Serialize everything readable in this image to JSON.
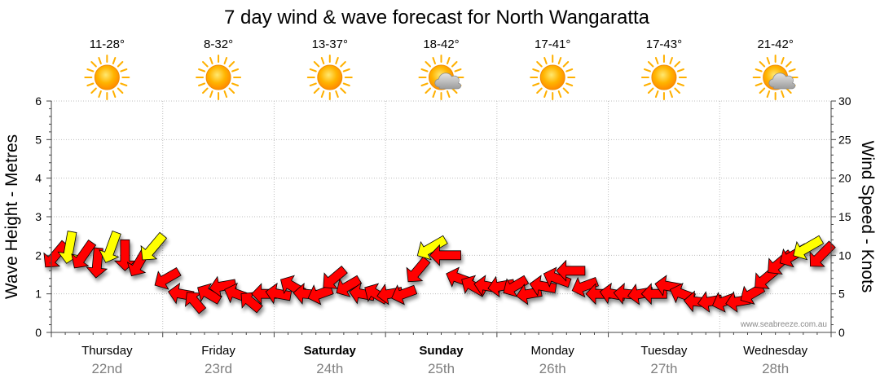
{
  "chart_data": {
    "type": "line",
    "title": "7 day wind & wave forecast for North Wangaratta",
    "ylabel_left": "Wave Height - Metres",
    "ylabel_right": "Wind Speed - Knots",
    "ylim_left": [
      0,
      6
    ],
    "ylim_right": [
      0,
      30
    ],
    "yticks_left": [
      "0",
      "1",
      "2",
      "3",
      "4",
      "5",
      "6"
    ],
    "yticks_right": [
      "0",
      "5",
      "10",
      "15",
      "20",
      "25",
      "30"
    ],
    "grid": true,
    "credit": "www.seabreeze.com.au",
    "days": [
      {
        "name": "Thursday",
        "date": "22nd",
        "temp": "11-28°",
        "icon": "sun-icon",
        "bold": false
      },
      {
        "name": "Friday",
        "date": "23rd",
        "temp": "8-32°",
        "icon": "sun-icon",
        "bold": false
      },
      {
        "name": "Saturday",
        "date": "24th",
        "temp": "13-37°",
        "icon": "sun-icon",
        "bold": true
      },
      {
        "name": "Sunday",
        "date": "25th",
        "temp": "18-42°",
        "icon": "sun-cloud-icon",
        "bold": true
      },
      {
        "name": "Monday",
        "date": "26th",
        "temp": "17-41°",
        "icon": "sun-icon",
        "bold": false
      },
      {
        "name": "Tuesday",
        "date": "27th",
        "temp": "17-43°",
        "icon": "sun-icon",
        "bold": false
      },
      {
        "name": "Wednesday",
        "date": "28th",
        "temp": "21-42°",
        "icon": "sun-cloud-icon",
        "bold": false
      }
    ],
    "series": [
      {
        "kind": "wind-arrows",
        "unit": "knots",
        "colors": {
          "wind": "#ff0000",
          "gust": "#ffff00"
        },
        "x_hours": [
          0,
          3,
          6,
          9,
          12,
          15,
          18,
          21,
          24,
          27,
          30,
          33,
          36,
          39,
          42,
          45,
          48,
          51,
          54,
          57,
          60,
          63,
          66,
          69,
          72,
          75,
          78,
          81,
          84,
          87,
          90,
          93,
          96,
          99,
          102,
          105,
          108,
          111,
          114,
          117,
          120,
          123,
          126,
          129,
          132,
          135,
          138,
          141,
          144,
          147,
          150,
          153,
          156,
          159,
          162,
          165
        ],
        "speed": [
          10,
          11,
          10,
          9,
          11,
          10,
          9,
          11,
          7,
          5,
          4,
          5,
          6,
          5,
          4,
          5,
          5,
          6,
          5,
          5,
          7,
          6,
          5,
          5,
          5,
          5,
          8,
          11,
          10,
          7,
          6,
          6,
          6,
          6,
          5,
          6,
          7,
          8,
          6,
          5,
          5,
          5,
          5,
          5,
          6,
          5,
          4,
          4,
          4,
          4,
          5,
          7,
          9,
          10,
          11,
          10
        ],
        "direction_deg": [
          40,
          10,
          35,
          5,
          20,
          0,
          30,
          40,
          60,
          100,
          140,
          120,
          80,
          110,
          130,
          90,
          100,
          120,
          95,
          70,
          50,
          60,
          100,
          120,
          80,
          70,
          40,
          60,
          90,
          110,
          120,
          100,
          80,
          60,
          80,
          100,
          110,
          90,
          70,
          90,
          100,
          95,
          80,
          90,
          100,
          110,
          95,
          80,
          70,
          80,
          60,
          50,
          50,
          60,
          60,
          45
        ]
      }
    ]
  }
}
